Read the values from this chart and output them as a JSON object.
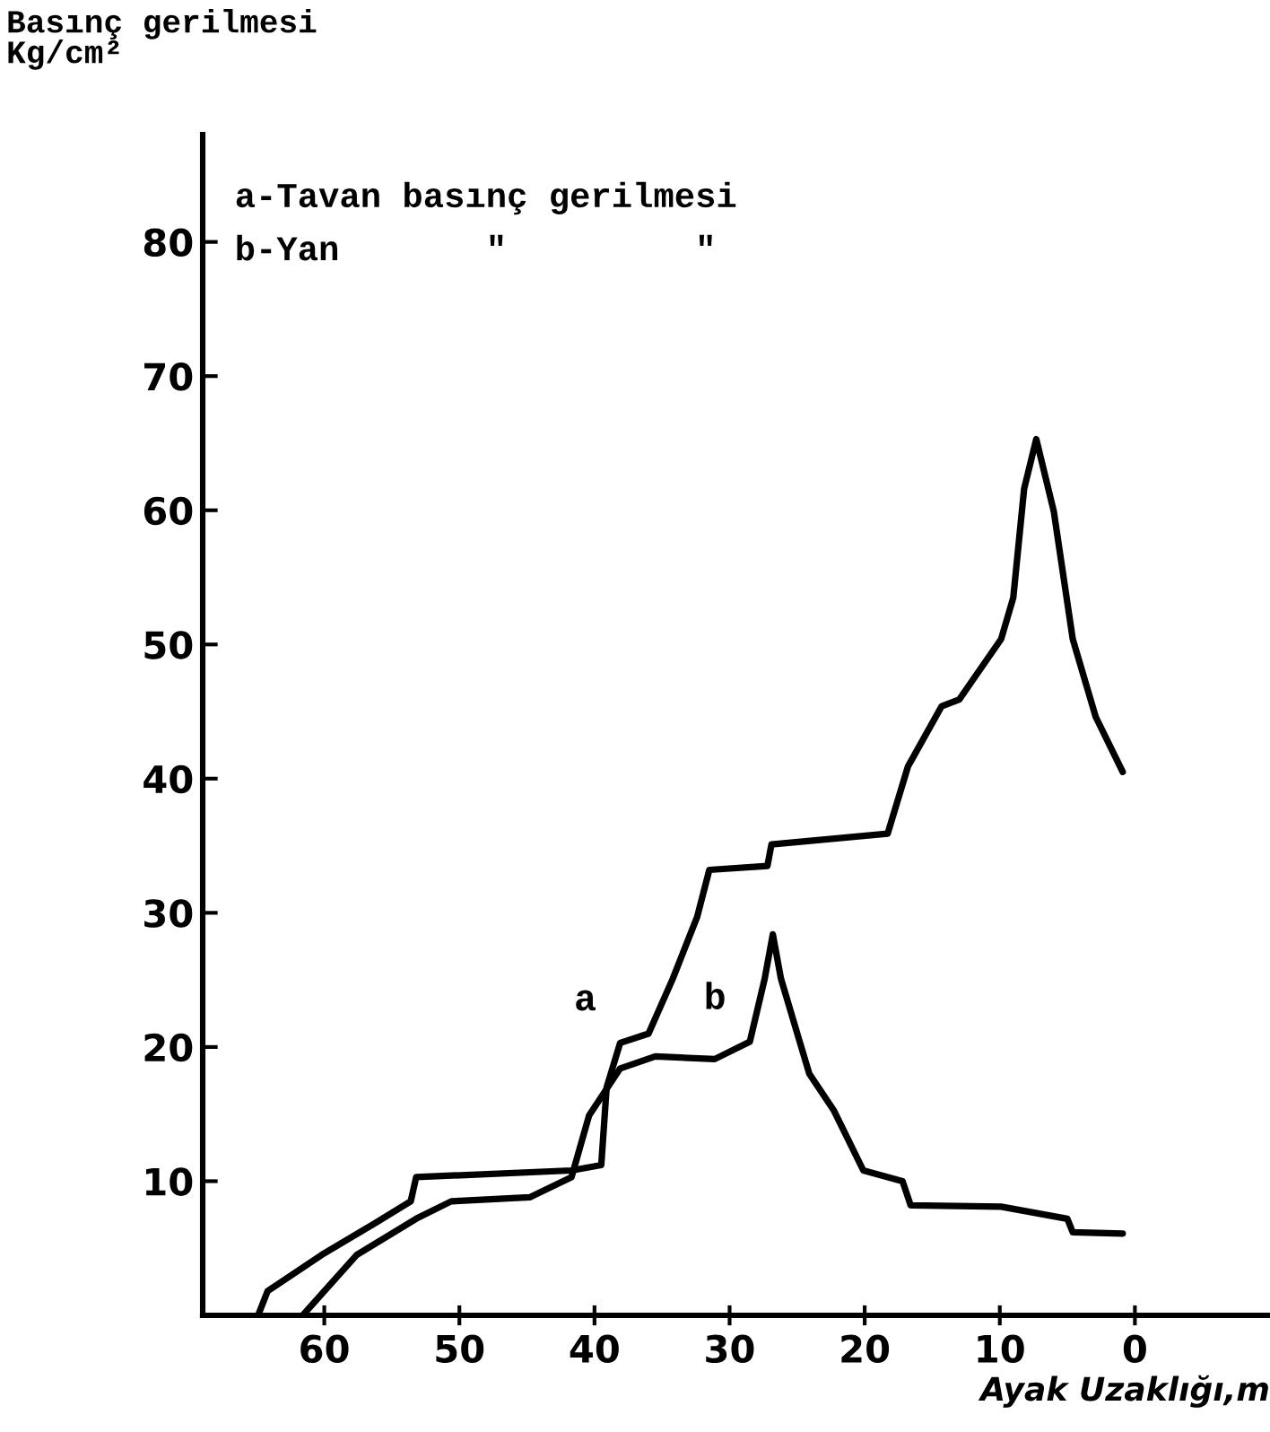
{
  "chart_data": {
    "type": "line",
    "ylabel": "Basınç gerilmesi\nKg/cm²",
    "xlabel": "Ayak Uzaklığı,m",
    "annotations": [
      "a-Tavan basınç gerilmesi",
      "b-Yan       \"         \""
    ],
    "xlim": [
      69,
      -10
    ],
    "ylim": [
      0,
      88
    ],
    "xticks": [
      60,
      50,
      40,
      30,
      20,
      10,
      0
    ],
    "yticks": [
      10,
      20,
      30,
      40,
      50,
      60,
      70,
      80
    ],
    "grid": false,
    "legend": false,
    "marker": "none",
    "line_style": "solid",
    "series": [
      {
        "name": "a",
        "color": "#000000",
        "x": [
          64.9,
          64.2,
          60.2,
          56.2,
          53.6,
          53.2,
          41.7,
          39.5,
          39.1,
          38.1,
          36.0,
          34.2,
          32.4,
          31.5,
          27.2,
          26.9,
          18.3,
          16.8,
          14.3,
          13.0,
          9.9,
          9.0,
          8.2,
          7.3,
          6.0,
          4.6,
          2.9,
          0.9
        ],
        "values": [
          0,
          1.8,
          4.5,
          6.9,
          8.5,
          10.3,
          10.8,
          11.2,
          17,
          20.3,
          21,
          25.1,
          29.7,
          33.2,
          33.5,
          35.1,
          35.9,
          40.9,
          45.4,
          45.9,
          50.4,
          53.5,
          61.6,
          65.3,
          59.9,
          50.4,
          44.6,
          40.5
        ]
      },
      {
        "name": "b",
        "color": "#000000",
        "x": [
          61.6,
          57.6,
          53.2,
          50.6,
          44.8,
          41.7,
          40.4,
          38.1,
          35.5,
          31.1,
          28.5,
          27.4,
          26.8,
          26.2,
          24.9,
          24.1,
          22.3,
          20.1,
          17.2,
          16.6,
          9.9,
          5.0,
          4.6,
          0.9
        ],
        "values": [
          0,
          4.5,
          7.2,
          8.5,
          8.8,
          10.3,
          14.9,
          18.4,
          19.3,
          19.1,
          20.4,
          25.1,
          28.4,
          25.1,
          20.7,
          18,
          15.3,
          10.8,
          10,
          8.2,
          8.1,
          7.2,
          6.2,
          6.1
        ]
      }
    ]
  }
}
